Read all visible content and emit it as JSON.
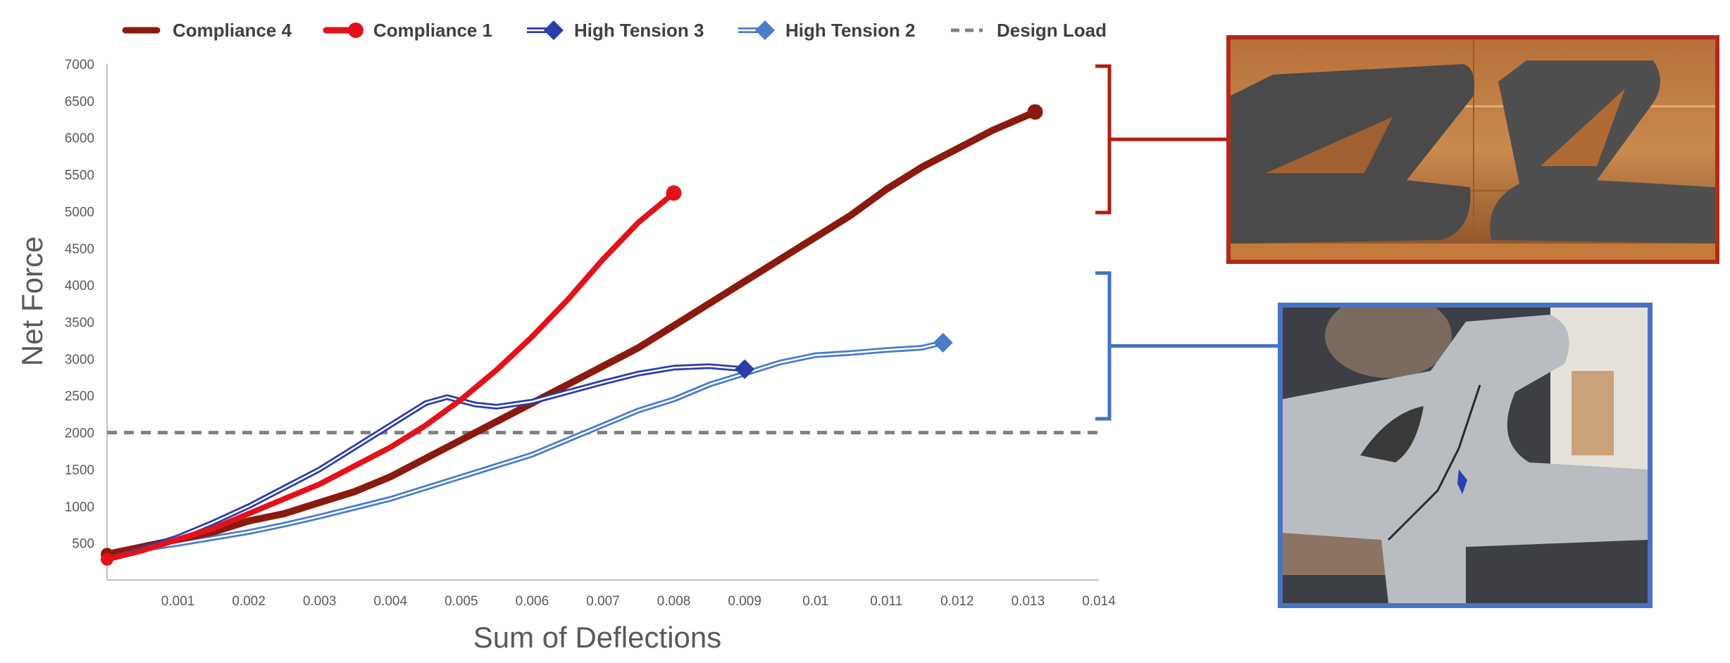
{
  "colors": {
    "compliance4": "#8b1a0e",
    "compliance1": "#e3121a",
    "high_tension3": "#2a3da8",
    "high_tension2": "#4a7cc9",
    "design_load": "#808080",
    "axis": "#bfbfbf",
    "top_bracket": "#b01e10",
    "bottom_bracket": "#4472c4"
  },
  "images": {
    "top_photo_icon": "cracked-casting-photo",
    "bottom_photo_icon": "specimen-crack-photo"
  },
  "chart_data": {
    "type": "line",
    "title": "",
    "xlabel": "Sum of Deflections",
    "ylabel": "Net Force",
    "xlim": [
      0,
      0.014
    ],
    "ylim": [
      0,
      7000
    ],
    "x_ticks": [
      "0.001",
      "0.002",
      "0.003",
      "0.004",
      "0.005",
      "0.006",
      "0.007",
      "0.008",
      "0.009",
      "0.01",
      "0.011",
      "0.012",
      "0.013",
      "0.014"
    ],
    "y_ticks": [
      "500",
      "1000",
      "1500",
      "2000",
      "2500",
      "3000",
      "3500",
      "4000",
      "4500",
      "5000",
      "5500",
      "6000",
      "6500",
      "7000"
    ],
    "grid": false,
    "legend_position": "top",
    "series": [
      {
        "name": "Compliance 4",
        "style": "solid",
        "marker": "circle",
        "points": [
          [
            0,
            350
          ],
          [
            0.0005,
            450
          ],
          [
            0.001,
            550
          ],
          [
            0.0015,
            650
          ],
          [
            0.002,
            800
          ],
          [
            0.0025,
            900
          ],
          [
            0.003,
            1050
          ],
          [
            0.0035,
            1200
          ],
          [
            0.004,
            1400
          ],
          [
            0.0045,
            1650
          ],
          [
            0.005,
            1900
          ],
          [
            0.0055,
            2150
          ],
          [
            0.006,
            2400
          ],
          [
            0.0065,
            2650
          ],
          [
            0.007,
            2900
          ],
          [
            0.0075,
            3150
          ],
          [
            0.008,
            3450
          ],
          [
            0.0085,
            3750
          ],
          [
            0.009,
            4050
          ],
          [
            0.0095,
            4350
          ],
          [
            0.01,
            4650
          ],
          [
            0.0105,
            4950
          ],
          [
            0.011,
            5300
          ],
          [
            0.0115,
            5600
          ],
          [
            0.012,
            5850
          ],
          [
            0.0125,
            6100
          ],
          [
            0.0131,
            6350
          ]
        ]
      },
      {
        "name": "Compliance 1",
        "style": "solid",
        "marker": "circle",
        "points": [
          [
            0,
            280
          ],
          [
            0.0005,
            400
          ],
          [
            0.001,
            550
          ],
          [
            0.0015,
            700
          ],
          [
            0.002,
            900
          ],
          [
            0.0025,
            1100
          ],
          [
            0.003,
            1300
          ],
          [
            0.0035,
            1550
          ],
          [
            0.004,
            1800
          ],
          [
            0.0045,
            2100
          ],
          [
            0.005,
            2450
          ],
          [
            0.0055,
            2850
          ],
          [
            0.006,
            3300
          ],
          [
            0.0065,
            3800
          ],
          [
            0.007,
            4350
          ],
          [
            0.0075,
            4850
          ],
          [
            0.008,
            5250
          ]
        ]
      },
      {
        "name": "High Tension 3",
        "style": "double",
        "marker": "diamond",
        "points": [
          [
            0,
            280
          ],
          [
            0.0005,
            420
          ],
          [
            0.001,
            580
          ],
          [
            0.0015,
            780
          ],
          [
            0.002,
            1000
          ],
          [
            0.0025,
            1250
          ],
          [
            0.003,
            1500
          ],
          [
            0.0035,
            1800
          ],
          [
            0.004,
            2100
          ],
          [
            0.0045,
            2400
          ],
          [
            0.0048,
            2480
          ],
          [
            0.0052,
            2380
          ],
          [
            0.0055,
            2350
          ],
          [
            0.006,
            2420
          ],
          [
            0.0065,
            2550
          ],
          [
            0.007,
            2680
          ],
          [
            0.0075,
            2800
          ],
          [
            0.008,
            2880
          ],
          [
            0.0085,
            2900
          ],
          [
            0.009,
            2860
          ]
        ]
      },
      {
        "name": "High Tension 2",
        "style": "double",
        "marker": "diamond",
        "points": [
          [
            0,
            350
          ],
          [
            0.0005,
            420
          ],
          [
            0.001,
            490
          ],
          [
            0.0015,
            570
          ],
          [
            0.002,
            650
          ],
          [
            0.0025,
            750
          ],
          [
            0.003,
            860
          ],
          [
            0.0035,
            980
          ],
          [
            0.004,
            1100
          ],
          [
            0.0045,
            1250
          ],
          [
            0.005,
            1400
          ],
          [
            0.0055,
            1550
          ],
          [
            0.006,
            1700
          ],
          [
            0.0065,
            1900
          ],
          [
            0.007,
            2100
          ],
          [
            0.0075,
            2300
          ],
          [
            0.008,
            2450
          ],
          [
            0.0085,
            2650
          ],
          [
            0.009,
            2800
          ],
          [
            0.0095,
            2950
          ],
          [
            0.01,
            3050
          ],
          [
            0.0105,
            3080
          ],
          [
            0.011,
            3120
          ],
          [
            0.0115,
            3150
          ],
          [
            0.0118,
            3220
          ]
        ]
      },
      {
        "name": "Design Load",
        "style": "dashed",
        "marker": "none",
        "points": [
          [
            0,
            2000
          ],
          [
            0.014,
            2000
          ]
        ]
      }
    ]
  }
}
